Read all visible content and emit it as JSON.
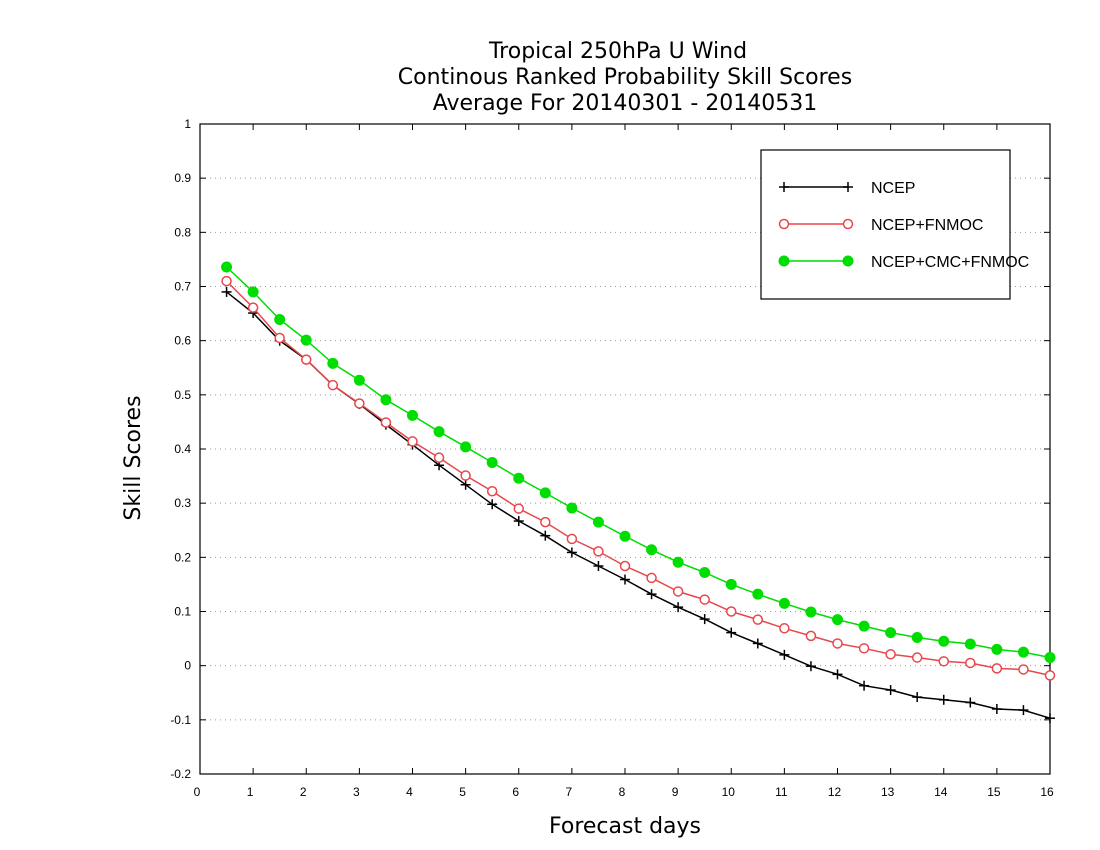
{
  "chart_data": {
    "type": "line",
    "title_lines": [
      "Tropical 250hPa U Wind",
      "Continous Ranked Probability Skill Scores",
      "Average For 20140301 - 20140531"
    ],
    "xlabel": "Forecast days",
    "ylabel": "Skill Scores",
    "xlim": [
      0,
      16
    ],
    "ylim": [
      -0.2,
      1
    ],
    "x_ticks": [
      0,
      1,
      2,
      3,
      4,
      5,
      6,
      7,
      8,
      9,
      10,
      11,
      12,
      13,
      14,
      15,
      16
    ],
    "y_ticks": [
      -0.2,
      -0.1,
      0,
      0.1,
      0.2,
      0.3,
      0.4,
      0.5,
      0.6,
      0.7,
      0.8,
      0.9,
      1
    ],
    "y_tick_labels": [
      "-0.2",
      "-0.1",
      "0",
      "0.1",
      "0.2",
      "0.3",
      "0.4",
      "0.5",
      "0.6",
      "0.7",
      "0.8",
      "0.9",
      "1"
    ],
    "grid": "horizontal-dotted",
    "legend_position": "top-right",
    "x": [
      0.5,
      1.0,
      1.5,
      2.0,
      2.5,
      3.0,
      3.5,
      4.0,
      4.5,
      5.0,
      5.5,
      6.0,
      6.5,
      7.0,
      7.5,
      8.0,
      8.5,
      9.0,
      9.5,
      10.0,
      10.5,
      11.0,
      11.5,
      12.0,
      12.5,
      13.0,
      13.5,
      14.0,
      14.5,
      15.0,
      15.5,
      16.0
    ],
    "series": [
      {
        "name": "NCEP",
        "color": "#000000",
        "marker": "plus",
        "values": [
          0.69,
          0.651,
          0.6,
          0.565,
          0.518,
          0.483,
          0.445,
          0.408,
          0.37,
          0.334,
          0.298,
          0.267,
          0.24,
          0.209,
          0.184,
          0.159,
          0.132,
          0.108,
          0.086,
          0.061,
          0.041,
          0.02,
          -0.001,
          -0.016,
          -0.037,
          -0.045,
          -0.058,
          -0.063,
          -0.068,
          -0.08,
          -0.082,
          -0.097
        ]
      },
      {
        "name": "NCEP+FNMOC",
        "color": "#e8474c",
        "marker": "open-circle",
        "values": [
          0.71,
          0.661,
          0.605,
          0.565,
          0.518,
          0.484,
          0.449,
          0.414,
          0.384,
          0.351,
          0.322,
          0.29,
          0.265,
          0.234,
          0.211,
          0.184,
          0.162,
          0.137,
          0.122,
          0.1,
          0.085,
          0.069,
          0.055,
          0.041,
          0.032,
          0.021,
          0.015,
          0.008,
          0.005,
          -0.005,
          -0.007,
          -0.018
        ]
      },
      {
        "name": "NCEP+CMC+FNMOC",
        "color": "#00dd00",
        "marker": "filled-circle",
        "values": [
          0.736,
          0.69,
          0.639,
          0.601,
          0.558,
          0.527,
          0.491,
          0.462,
          0.432,
          0.404,
          0.375,
          0.346,
          0.319,
          0.291,
          0.265,
          0.239,
          0.214,
          0.191,
          0.172,
          0.15,
          0.132,
          0.115,
          0.099,
          0.085,
          0.073,
          0.061,
          0.052,
          0.045,
          0.04,
          0.03,
          0.025,
          0.015
        ]
      }
    ]
  }
}
